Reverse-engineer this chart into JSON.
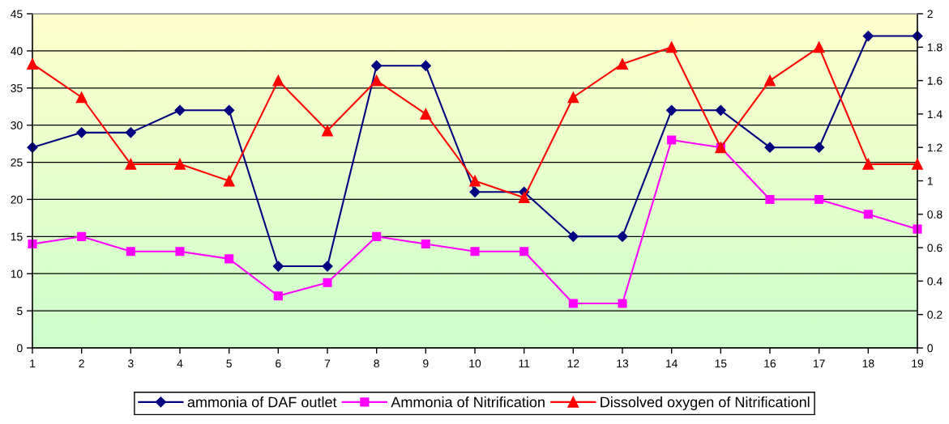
{
  "chart_data": {
    "type": "line",
    "categories": [
      "1",
      "2",
      "3",
      "4",
      "5",
      "6",
      "7",
      "8",
      "9",
      "10",
      "11",
      "12",
      "13",
      "14",
      "15",
      "16",
      "17",
      "18",
      "19"
    ],
    "series": [
      {
        "name": "ammonia of DAF outlet",
        "color": "#000080",
        "marker": "diamond",
        "values": [
          27,
          29,
          29,
          32,
          32,
          11,
          11,
          38,
          38,
          21,
          21,
          15,
          15,
          32,
          32,
          27,
          27,
          42,
          42
        ]
      },
      {
        "name": "Ammonia of Nitrification",
        "color": "#ff00ff",
        "marker": "square",
        "values": [
          14,
          15,
          13,
          13,
          12,
          7,
          8.8,
          15,
          14,
          13,
          13,
          6,
          6,
          28,
          27,
          20,
          20,
          18,
          16
        ]
      },
      {
        "name": "Dissolved oxygen of Nitrificationl",
        "color": "#ff0000",
        "marker": "triangle",
        "axis": "y2",
        "values": [
          1.7,
          1.5,
          1.1,
          1.1,
          1.0,
          1.6,
          1.3,
          1.6,
          1.4,
          1.0,
          0.9,
          1.5,
          1.7,
          1.8,
          1.2,
          1.6,
          1.8,
          1.1,
          1.1
        ]
      }
    ],
    "ylim": [
      0,
      45
    ],
    "yticks": [
      0,
      5,
      10,
      15,
      20,
      25,
      30,
      35,
      40,
      45
    ],
    "y2lim": [
      0,
      2
    ],
    "y2ticks": [
      0,
      0.2,
      0.4,
      0.6,
      0.8,
      1,
      1.2,
      1.4,
      1.6,
      1.8,
      2
    ],
    "grid": "y",
    "legend": "bottom",
    "line_style": "solid"
  }
}
